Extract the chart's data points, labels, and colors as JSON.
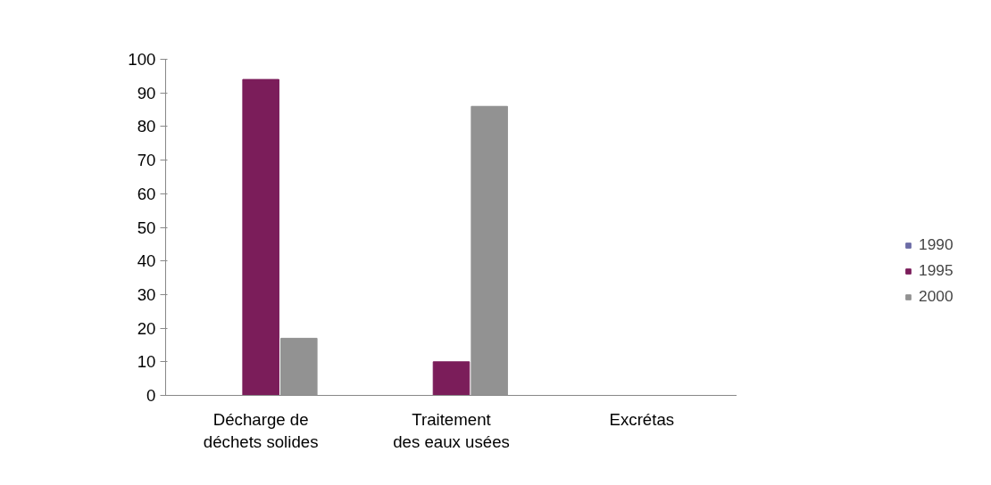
{
  "chart_data": {
    "type": "bar",
    "categories": [
      "Décharge de déchets solides",
      "Traitement des eaux usées",
      "Excrétas"
    ],
    "series": [
      {
        "name": "1990",
        "color": "#6b6ba6",
        "values": [
          0,
          0,
          0
        ]
      },
      {
        "name": "1995",
        "color": "#7b1d5a",
        "values": [
          94,
          10,
          0
        ]
      },
      {
        "name": "2000",
        "color": "#929292",
        "values": [
          17,
          86,
          0
        ]
      }
    ],
    "ylim": [
      0,
      100
    ],
    "yticks": [
      0,
      10,
      20,
      30,
      40,
      50,
      60,
      70,
      80,
      90,
      100
    ],
    "legend": "right"
  }
}
